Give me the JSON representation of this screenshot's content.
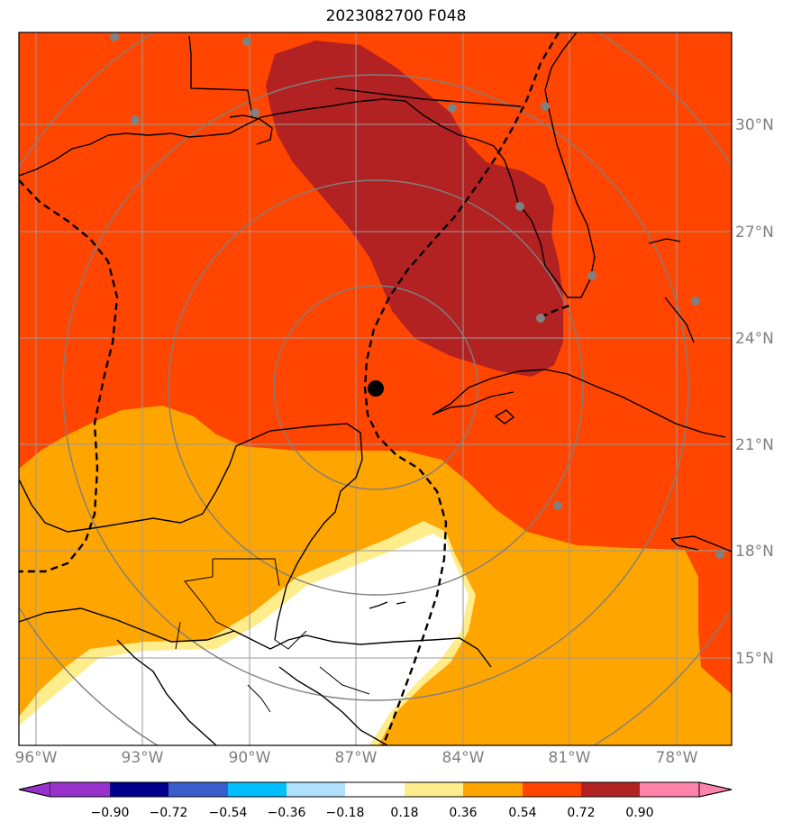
{
  "title": "2023082700 F048",
  "map": {
    "lat_labels": [
      "30°N",
      "27°N",
      "24°N",
      "21°N",
      "18°N",
      "15°N"
    ],
    "lon_labels": [
      "96°W",
      "93°W",
      "90°W",
      "87°W",
      "84°W",
      "81°W",
      "78°W"
    ],
    "storm_center_lat": 22.6,
    "storm_center_lon": -86.5,
    "ring_count": 4
  },
  "colorbar": {
    "ticks": [
      "−0.90",
      "−0.72",
      "−0.54",
      "−0.36",
      "−0.18",
      "0.18",
      "0.36",
      "0.54",
      "0.72",
      "0.90"
    ],
    "colors": [
      "#9932CC",
      "#00008B",
      "#3A5FCD",
      "#00BFFF",
      "#B0E2FF",
      "#FFFFFF",
      "#FFEC8B",
      "#FFA500",
      "#FF4500",
      "#B22222",
      "#FF83AA"
    ]
  }
}
